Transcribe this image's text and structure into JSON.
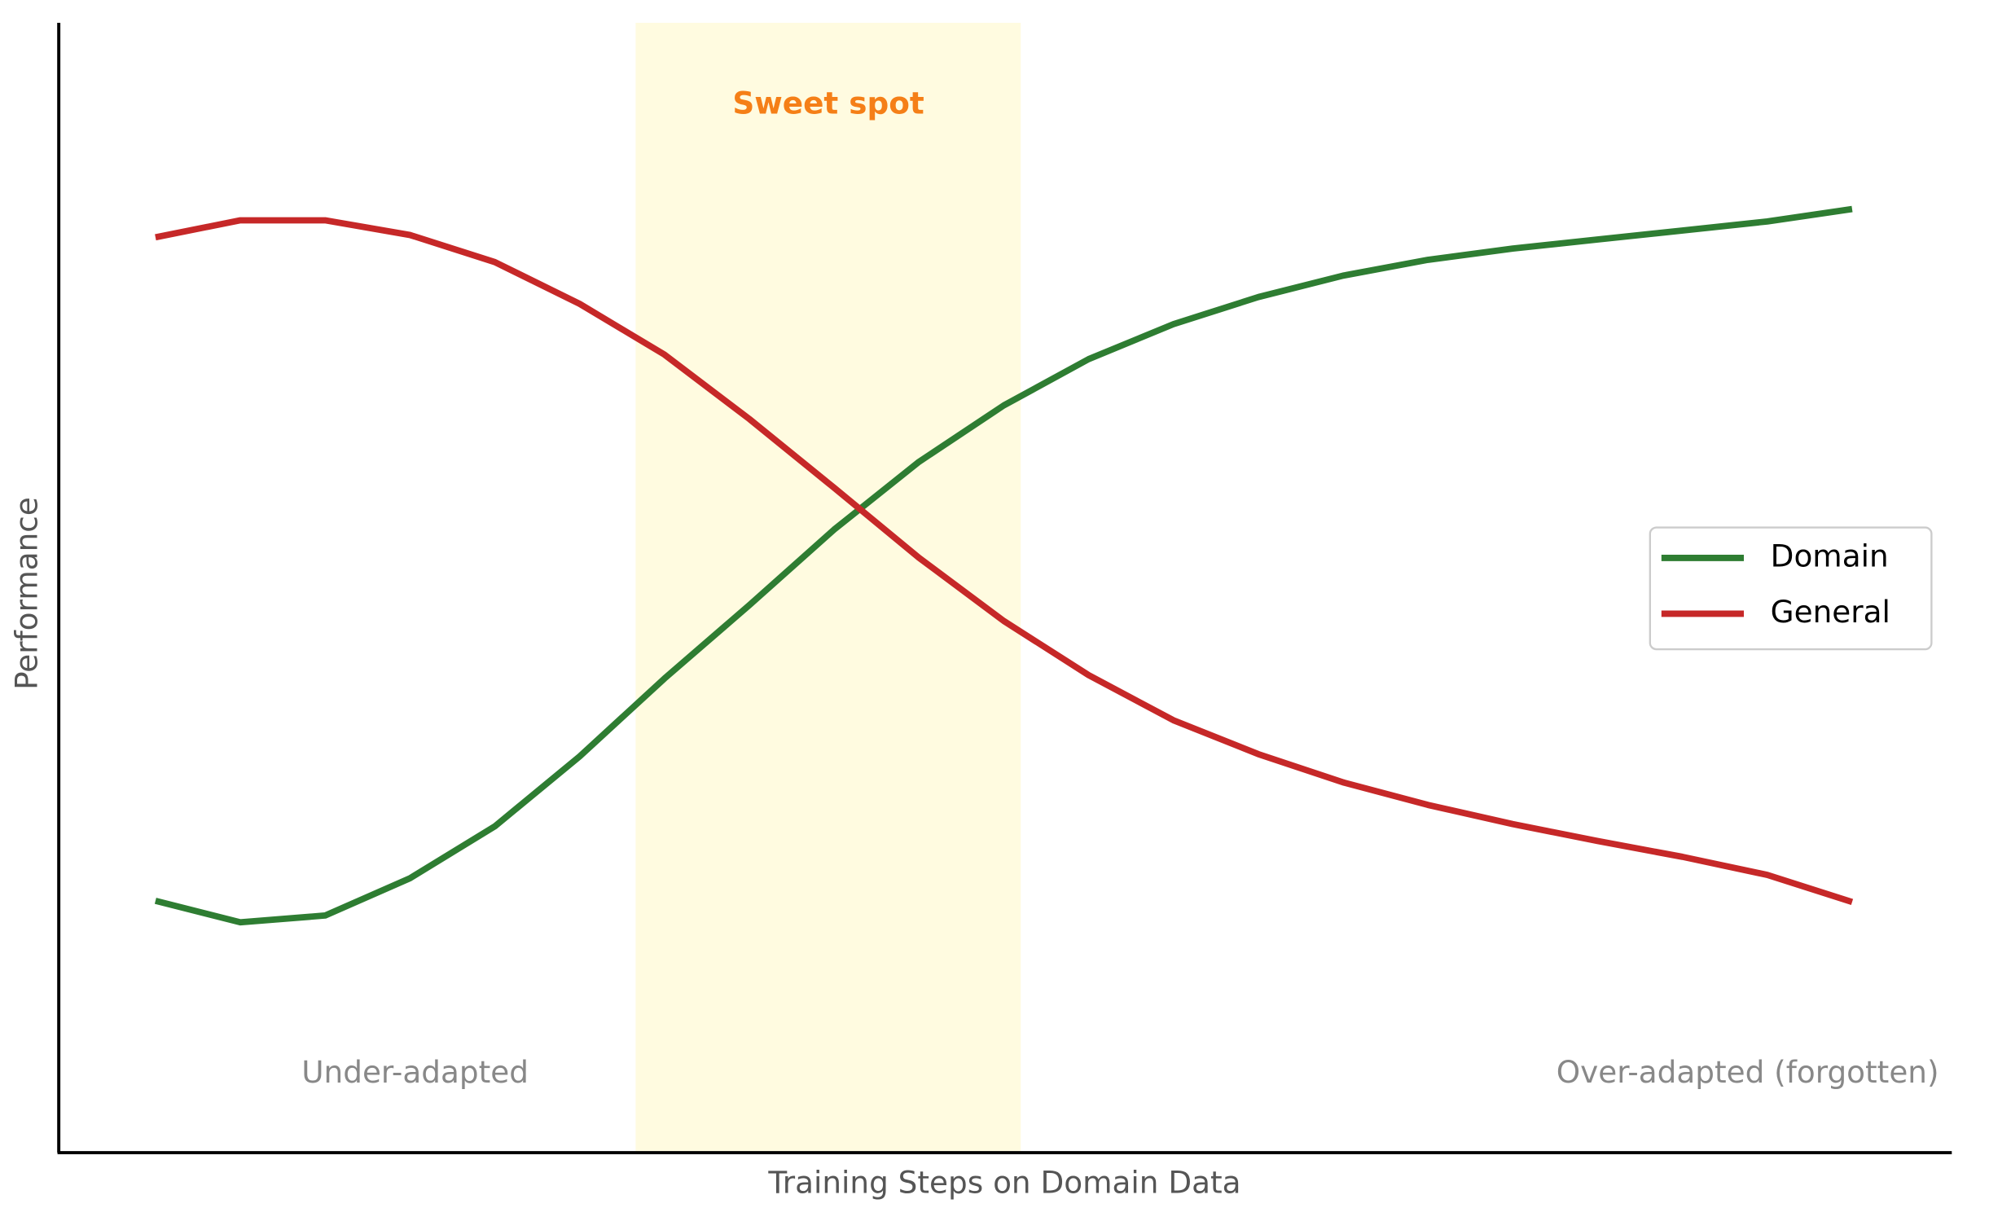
{
  "chart_data": {
    "type": "line",
    "x_label": "Training Steps on Domain Data",
    "y_label": "Performance",
    "x": [
      0,
      0.5,
      1,
      1.5,
      2,
      2.5,
      3,
      3.5,
      4,
      4.5,
      5,
      5.5,
      6,
      6.5,
      7,
      7.5,
      8,
      8.5,
      9,
      9.5,
      10
    ],
    "series": [
      {
        "name": "Domain",
        "color": "#2e7d32",
        "values": [
          0.222,
          0.203,
          0.209,
          0.242,
          0.288,
          0.35,
          0.419,
          0.484,
          0.551,
          0.611,
          0.661,
          0.702,
          0.733,
          0.757,
          0.776,
          0.79,
          0.8,
          0.808,
          0.816,
          0.824,
          0.835
        ]
      },
      {
        "name": "General",
        "color": "#c62828",
        "values": [
          0.81,
          0.825,
          0.825,
          0.812,
          0.788,
          0.751,
          0.706,
          0.649,
          0.588,
          0.526,
          0.47,
          0.422,
          0.382,
          0.352,
          0.327,
          0.307,
          0.29,
          0.275,
          0.261,
          0.245,
          0.221
        ]
      }
    ],
    "highlight_span": [
      2.83,
      5.1
    ],
    "highlight_color": "#fffbe0",
    "annotations": [
      {
        "text": "Sweet spot",
        "color": "#f57f17",
        "bold": true
      },
      {
        "text": "Under-adapted",
        "color": "#888888",
        "bold": false
      },
      {
        "text": "Over-adapted (forgotten)",
        "color": "#888888",
        "bold": false
      }
    ],
    "xlim": [
      -0.57,
      10.58
    ],
    "ylim": [
      0,
      1
    ],
    "grid": false,
    "legend": "center right"
  }
}
